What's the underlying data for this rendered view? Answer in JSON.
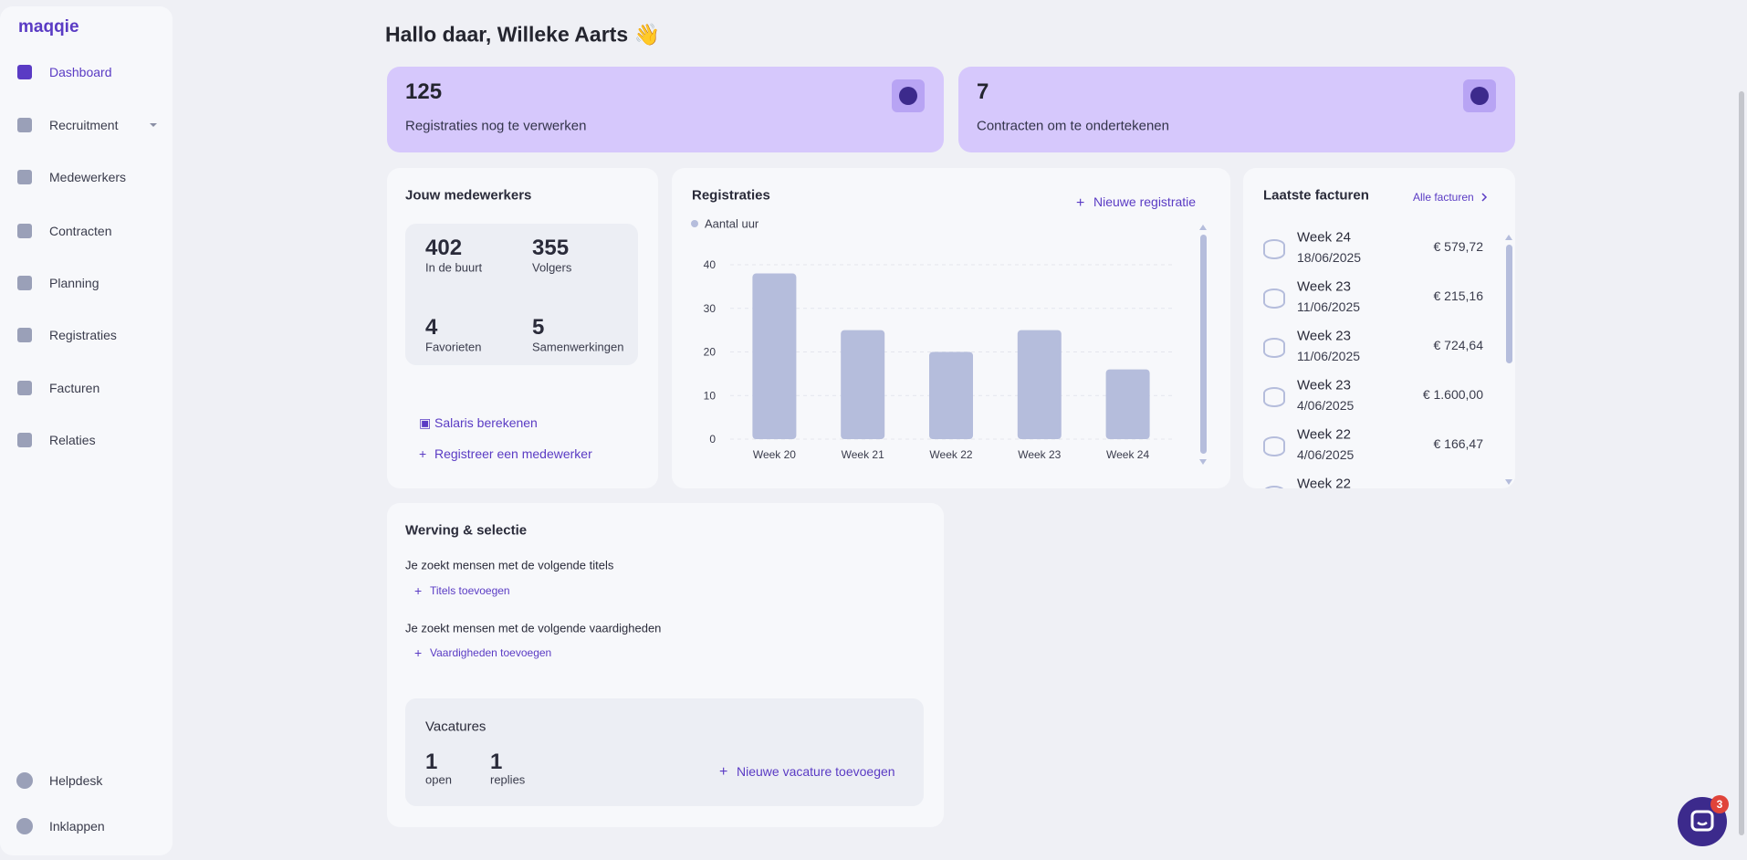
{
  "sidebar": {
    "logo": "maqqie",
    "nav": [
      "Dashboard",
      "Recruitment",
      "Medewerkers",
      "Contracten",
      "Planning",
      "Registraties",
      "Facturen",
      "Relaties"
    ],
    "bottom": [
      "Helpdesk",
      "Inklappen"
    ]
  },
  "greeting": "Hallo daar, Willeke Aarts 👋",
  "stat_cards": [
    {
      "value": "125",
      "label": "Registraties nog te verwerken"
    },
    {
      "value": "7",
      "label": "Contracten om te ondertekenen"
    }
  ],
  "employees": {
    "title": "Jouw medewerkers",
    "stats": [
      {
        "value": "402",
        "label": "In de buurt"
      },
      {
        "value": "355",
        "label": "Volgers"
      },
      {
        "value": "4",
        "label": "Favorieten"
      },
      {
        "value": "5",
        "label": "Samenwerkingen"
      }
    ],
    "actions": [
      "Salaris berekenen",
      "Registreer een medewerker"
    ]
  },
  "registrations": {
    "title": "Registraties",
    "action": "Nieuwe registratie"
  },
  "chart_data": {
    "type": "bar",
    "categories": [
      "Week 20",
      "Week 21",
      "Week 22",
      "Week 23",
      "Week 24"
    ],
    "series": [
      {
        "name": "Aantal uur",
        "color": "#b5bddc",
        "values": [
          38,
          25,
          20,
          25,
          16
        ]
      }
    ],
    "ylim": [
      0,
      40
    ],
    "yticks": [
      0,
      10,
      20,
      30,
      40
    ],
    "grid": true
  },
  "invoices": {
    "title": "Laatste facturen",
    "link": "Alle facturen",
    "items": [
      {
        "week": "Week 24",
        "date": "18/06/2025",
        "amount": "€ 579,72"
      },
      {
        "week": "Week 23",
        "date": "11/06/2025",
        "amount": "€ 215,16"
      },
      {
        "week": "Week 23",
        "date": "11/06/2025",
        "amount": "€ 724,64"
      },
      {
        "week": "Week 23",
        "date": "4/06/2025",
        "amount": "€ 1.600,00"
      },
      {
        "week": "Week 22",
        "date": "4/06/2025",
        "amount": "€ 166,47"
      },
      {
        "week": "Week 22"
      }
    ]
  },
  "recruitment": {
    "title": "Werving & selectie",
    "sections": [
      {
        "text": "Je zoekt mensen met de volgende titels",
        "action": "Titels toevoegen"
      },
      {
        "text": "Je zoekt mensen met de volgende vaardigheden",
        "action": "Vaardigheden toevoegen"
      }
    ],
    "vacancies": {
      "title": "Vacatures",
      "stats": [
        {
          "value": "1",
          "label": "open"
        },
        {
          "value": "1",
          "label": "replies"
        }
      ],
      "action": "Nieuwe vacature toevoegen"
    }
  },
  "chat_badge": "3"
}
